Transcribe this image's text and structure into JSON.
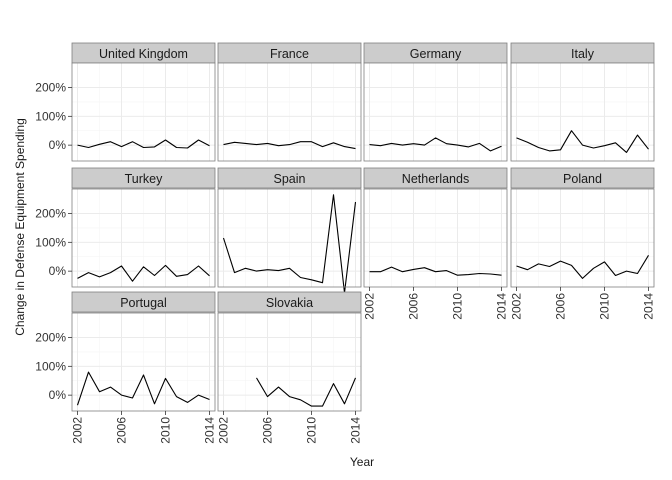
{
  "chart_data": {
    "type": "line",
    "layout": "facet-grid",
    "xlabel": "Year",
    "ylabel": "Change in Defense Equipment Spending",
    "xlim": [
      2001.5,
      2014.5
    ],
    "ylim": [
      -55,
      285
    ],
    "x_ticks": [
      2002,
      2006,
      2010,
      2014
    ],
    "y_ticks": [
      {
        "value": 0,
        "label": "0%"
      },
      {
        "value": 100,
        "label": "100%"
      },
      {
        "value": 200,
        "label": "200%"
      }
    ],
    "grid": true,
    "colors": {
      "panel_border": "#7f7f7f",
      "strip_fill": "#cccccc",
      "grid": "#ebebeb",
      "line": "#000000",
      "tick": "#333333"
    },
    "facets": [
      {
        "name": "United Kingdom",
        "x": [
          2002,
          2003,
          2004,
          2005,
          2006,
          2007,
          2008,
          2009,
          2010,
          2011,
          2012,
          2013,
          2014
        ],
        "y": [
          0,
          -8,
          3,
          12,
          -5,
          12,
          -8,
          -6,
          18,
          -8,
          -10,
          18,
          -2
        ]
      },
      {
        "name": "France",
        "x": [
          2002,
          2003,
          2004,
          2005,
          2006,
          2007,
          2008,
          2009,
          2010,
          2011,
          2012,
          2013,
          2014
        ],
        "y": [
          2,
          10,
          6,
          2,
          6,
          -2,
          2,
          12,
          12,
          -5,
          8,
          -5,
          -12
        ]
      },
      {
        "name": "Germany",
        "x": [
          2002,
          2003,
          2004,
          2005,
          2006,
          2007,
          2008,
          2009,
          2010,
          2011,
          2012,
          2013,
          2014
        ],
        "y": [
          2,
          -2,
          6,
          0,
          5,
          0,
          25,
          5,
          0,
          -6,
          6,
          -20,
          -4
        ]
      },
      {
        "name": "Italy",
        "x": [
          2002,
          2003,
          2004,
          2005,
          2006,
          2007,
          2008,
          2009,
          2010,
          2011,
          2012,
          2013,
          2014
        ],
        "y": [
          25,
          10,
          -8,
          -20,
          -16,
          50,
          0,
          -10,
          -2,
          8,
          -25,
          35,
          -14
        ]
      },
      {
        "name": "Turkey",
        "x": [
          2002,
          2003,
          2004,
          2005,
          2006,
          2007,
          2008,
          2009,
          2010,
          2011,
          2012,
          2013,
          2014
        ],
        "y": [
          -25,
          -5,
          -20,
          -5,
          18,
          -35,
          15,
          -15,
          20,
          -18,
          -12,
          18,
          -16
        ]
      },
      {
        "name": "Spain",
        "x": [
          2002,
          2003,
          2004,
          2005,
          2006,
          2007,
          2008,
          2009,
          2010,
          2011,
          2012,
          2013,
          2014
        ],
        "y": [
          115,
          -5,
          10,
          0,
          5,
          2,
          10,
          -22,
          -30,
          -40,
          265,
          -75,
          240
        ]
      },
      {
        "name": "Netherlands",
        "x": [
          2002,
          2003,
          2004,
          2005,
          2006,
          2007,
          2008,
          2009,
          2010,
          2011,
          2012,
          2013,
          2014
        ],
        "y": [
          -2,
          -2,
          14,
          -2,
          6,
          12,
          -2,
          2,
          -14,
          -12,
          -8,
          -10,
          -14
        ]
      },
      {
        "name": "Poland",
        "x": [
          2002,
          2003,
          2004,
          2005,
          2006,
          2007,
          2008,
          2009,
          2010,
          2011,
          2012,
          2013,
          2014
        ],
        "y": [
          18,
          5,
          25,
          16,
          35,
          20,
          -25,
          10,
          32,
          -15,
          0,
          -8,
          55
        ]
      },
      {
        "name": "Portugal",
        "x": [
          2002,
          2003,
          2004,
          2005,
          2006,
          2007,
          2008,
          2009,
          2010,
          2011,
          2012,
          2013,
          2014
        ],
        "y": [
          -35,
          80,
          12,
          28,
          0,
          -10,
          70,
          -30,
          58,
          -5,
          -25,
          0,
          -15
        ]
      },
      {
        "name": "Slovakia",
        "x": [
          2005,
          2006,
          2007,
          2008,
          2009,
          2010,
          2011,
          2012,
          2013,
          2014
        ],
        "y": [
          60,
          -5,
          28,
          -5,
          -16,
          -38,
          -38,
          40,
          -30,
          60
        ]
      }
    ]
  }
}
